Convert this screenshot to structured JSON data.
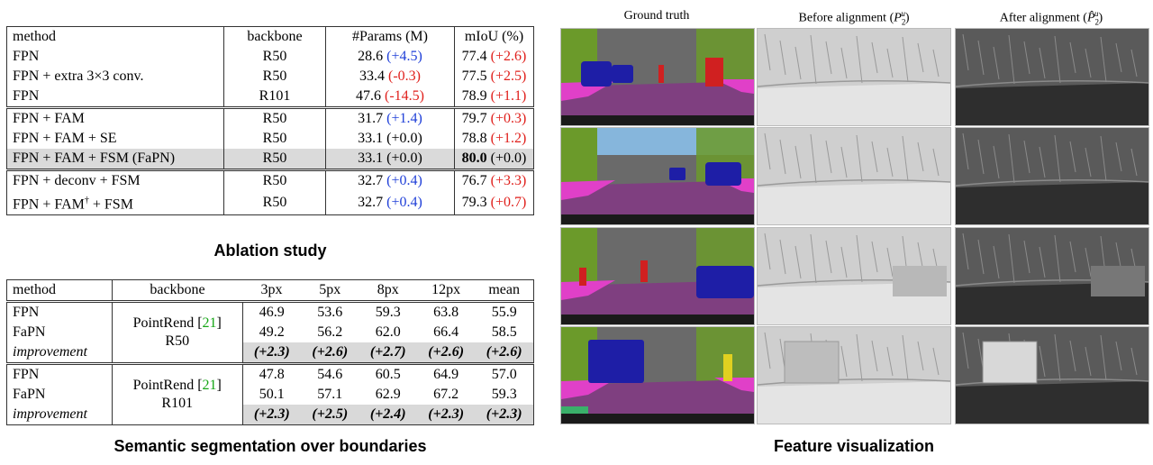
{
  "ablation": {
    "caption": "Ablation study",
    "headers": [
      "method",
      "backbone",
      "#Params (M)",
      "mIoU (%)"
    ],
    "rows": [
      {
        "method": "FPN",
        "backbone": "R50",
        "params": "28.6",
        "params_delta": "(+4.5)",
        "params_color": "blue",
        "miou": "77.4",
        "miou_delta": "(+2.6)",
        "miou_color": "red"
      },
      {
        "method": "FPN + extra 3×3 conv.",
        "backbone": "R50",
        "params": "33.4",
        "params_delta": "(-0.3)",
        "params_color": "red",
        "miou": "77.5",
        "miou_delta": "(+2.5)",
        "miou_color": "red"
      },
      {
        "method": "FPN",
        "backbone": "R101",
        "params": "47.6",
        "params_delta": "(-14.5)",
        "params_color": "red",
        "miou": "78.9",
        "miou_delta": "(+1.1)",
        "miou_color": "red"
      },
      {
        "method": "FPN + FAM",
        "backbone": "R50",
        "params": "31.7",
        "params_delta": "(+1.4)",
        "params_color": "blue",
        "miou": "79.7",
        "miou_delta": "(+0.3)",
        "miou_color": "red"
      },
      {
        "method": "FPN + FAM + SE",
        "backbone": "R50",
        "params": "33.1",
        "params_delta": "(+0.0)",
        "params_color": "black",
        "miou": "78.8",
        "miou_delta": "(+1.2)",
        "miou_color": "red"
      },
      {
        "method": "FPN + FAM + FSM (FaPN)",
        "backbone": "R50",
        "params": "33.1",
        "params_delta": "(+0.0)",
        "params_color": "black",
        "miou": "80.0",
        "miou_delta": "(+0.0)",
        "miou_color": "black"
      },
      {
        "method": "FPN + deconv + FSM",
        "backbone": "R50",
        "params": "32.7",
        "params_delta": "(+0.4)",
        "params_color": "blue",
        "miou": "76.7",
        "miou_delta": "(+3.3)",
        "miou_color": "red"
      },
      {
        "method": "FPN + FAM",
        "method_sup": "†",
        "method_tail": " + FSM",
        "backbone": "R50",
        "params": "32.7",
        "params_delta": "(+0.4)",
        "params_color": "blue",
        "miou": "79.3",
        "miou_delta": "(+0.7)",
        "miou_color": "red"
      }
    ]
  },
  "boundary": {
    "caption": "Semantic segmentation over boundaries",
    "headers": [
      "method",
      "backbone",
      "3px",
      "5px",
      "8px",
      "12px",
      "mean"
    ],
    "groups": [
      {
        "backbone_line1": "PointRend [",
        "backbone_ref": "21",
        "backbone_line1_end": "]",
        "backbone_line2": "R50",
        "rows": [
          {
            "method": "FPN",
            "values": [
              "46.9",
              "53.6",
              "59.3",
              "63.8",
              "55.9"
            ]
          },
          {
            "method": "FaPN",
            "values": [
              "49.2",
              "56.2",
              "62.0",
              "66.4",
              "58.5"
            ]
          },
          {
            "method": "improvement",
            "values": [
              "(+2.3)",
              "(+2.6)",
              "(+2.7)",
              "(+2.6)",
              "(+2.6)"
            ]
          }
        ]
      },
      {
        "backbone_line1": "PointRend [",
        "backbone_ref": "21",
        "backbone_line1_end": "]",
        "backbone_line2": "R101",
        "rows": [
          {
            "method": "FPN",
            "values": [
              "47.8",
              "54.6",
              "60.5",
              "64.9",
              "57.0"
            ]
          },
          {
            "method": "FaPN",
            "values": [
              "50.1",
              "57.1",
              "62.9",
              "67.2",
              "59.3"
            ]
          },
          {
            "method": "improvement",
            "values": [
              "(+2.3)",
              "(+2.5)",
              "(+2.4)",
              "(+2.3)",
              "(+2.3)"
            ]
          }
        ]
      }
    ]
  },
  "feature_viz": {
    "caption": "Feature visualization",
    "col_ground_truth": "Ground truth",
    "col_before_prefix": "Before alignment (",
    "col_before_math": "P",
    "col_before_sub": "2",
    "col_before_sup": "u",
    "col_after_prefix": "After alignment (",
    "col_after_math": "P̂",
    "col_after_sub": "2",
    "col_after_sup": "u",
    "col_suffix": ")",
    "colors": {
      "road": "#7f3f80",
      "vehicle": "#1e1ea6",
      "person": "#d02020",
      "vegetation": "#6b9a2a",
      "sidewalk": "#e040c8",
      "building": "#6a6a6a",
      "sky": "#86b6dc"
    }
  }
}
